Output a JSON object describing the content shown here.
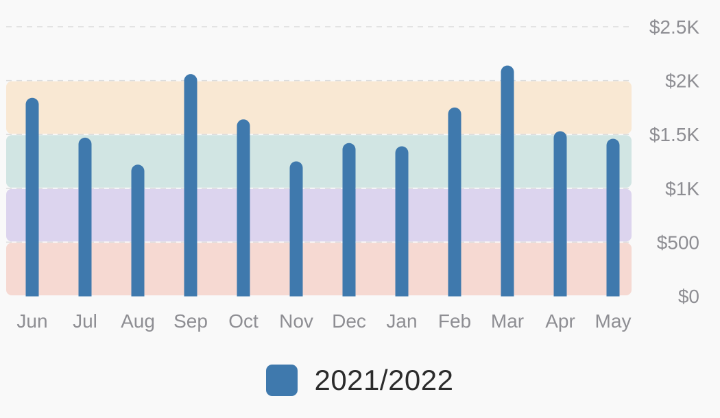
{
  "chart_data": {
    "type": "bar",
    "categories": [
      "Jun",
      "Jul",
      "Aug",
      "Sep",
      "Oct",
      "Nov",
      "Dec",
      "Jan",
      "Feb",
      "Mar",
      "Apr",
      "May"
    ],
    "series": [
      {
        "name": "2021/2022",
        "color": "#3f79ad",
        "values": [
          1840,
          1470,
          1220,
          2060,
          1640,
          1250,
          1420,
          1390,
          1750,
          2140,
          1530,
          1460
        ]
      }
    ],
    "ylim": [
      0,
      2500
    ],
    "y_ticks": [
      0,
      500,
      1000,
      1500,
      2000,
      2500
    ],
    "y_tick_labels": [
      "$0",
      "$500",
      "$1K",
      "$1.5K",
      "$2K",
      "$2.5K"
    ],
    "y_axis_side": "right",
    "bands": [
      {
        "from": 0,
        "to": 500,
        "color": "#f6d9d2"
      },
      {
        "from": 500,
        "to": 1000,
        "color": "#dcd4ee"
      },
      {
        "from": 1000,
        "to": 1500,
        "color": "#d1e5e3"
      },
      {
        "from": 1500,
        "to": 2000,
        "color": "#f9e8d3"
      }
    ],
    "grid": "dashed horizontal",
    "legend_position": "bottom-center"
  }
}
